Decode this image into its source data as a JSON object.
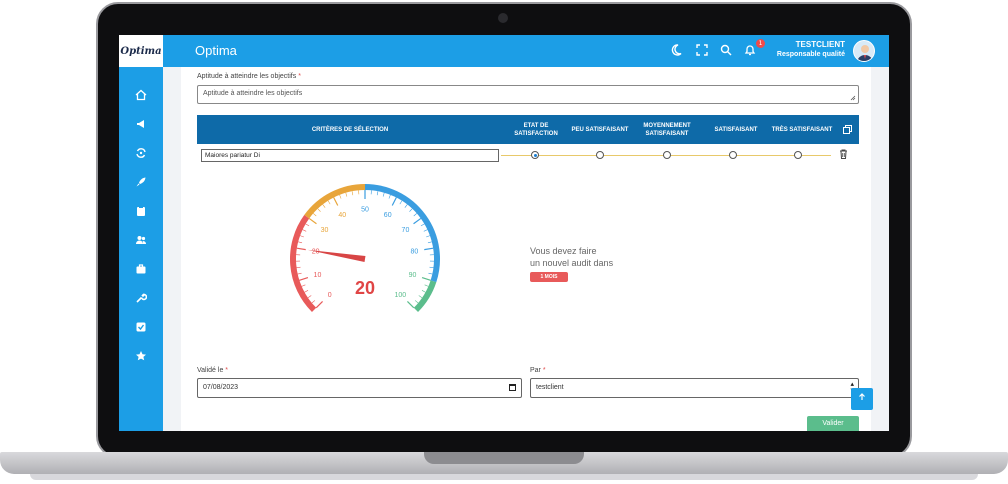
{
  "brand": {
    "logo_text": "Optima"
  },
  "topbar": {
    "title": "Optima",
    "notification_count": "1",
    "user_name": "TESTCLIENT",
    "user_role": "Responsable qualité",
    "icons": [
      "moon-icon",
      "fullscreen-icon",
      "search-icon",
      "bell-icon"
    ]
  },
  "sidebar": {
    "items": [
      "home-icon",
      "megaphone-icon",
      "cycle-icon",
      "rocket-icon",
      "clipboard-icon",
      "users-icon",
      "briefcase-icon",
      "wrench-icon",
      "check-square-icon",
      "star-icon"
    ]
  },
  "form": {
    "objective_label": "Aptitude à atteindre les objectifs",
    "objective_value": "Aptitude à atteindre les objectifs",
    "required_mark": "*",
    "table": {
      "headers": [
        "CRITÈRES DE SÉLECTION",
        "ETAT DE SATISFACTION",
        "PEU SATISFAISANT",
        "MOYENNEMENT SATISFAISANT",
        "SATISFAISANT",
        "TRÈS SATISFAISANT"
      ],
      "row_value": "Maiores pariatur Di",
      "selected_option": 0
    },
    "gauge": {
      "value": 20,
      "min": 0,
      "max": 100,
      "ticks": [
        "0",
        "10",
        "20",
        "30",
        "40",
        "50",
        "60",
        "70",
        "80",
        "90",
        "100"
      ],
      "label": "20",
      "colors": {
        "low": "#e85a5a",
        "mid": "#e8a53a",
        "high": "#3a9de0",
        "top": "#5bbd8c"
      }
    },
    "audit_message_line1": "Vous devez faire",
    "audit_message_line2": "un nouvel audit dans",
    "audit_badge": "1 MOIS",
    "validated_label": "Validé le",
    "validated_value": "07/08/2023",
    "by_label": "Par",
    "by_value": "testclient",
    "submit_label": "Valider",
    "scroll_top_icon": "arrow-up-icon"
  }
}
